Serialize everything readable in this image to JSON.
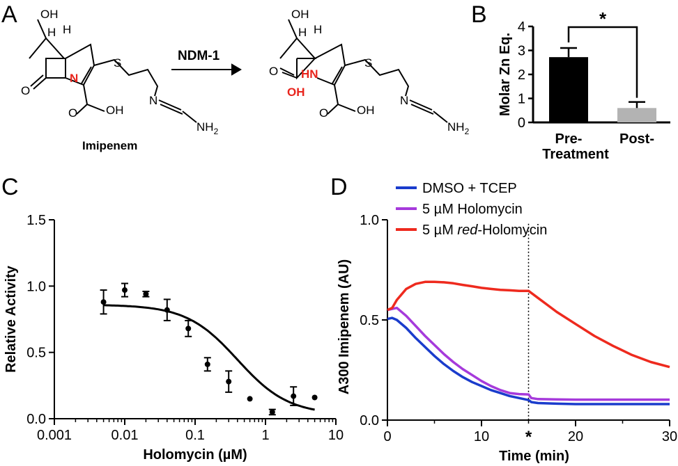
{
  "panels": {
    "A": {
      "label": "A",
      "reagent": "NDM-1",
      "substrate_name": "Imipenem",
      "atoms": {
        "oh": "OH",
        "h": "H",
        "n": "N",
        "o": "O",
        "s": "S",
        "cooh": "OH",
        "nh2_n": "NH",
        "nh2_sub": "2",
        "prod_hn": "HN",
        "prod_oh": "OH",
        "prod_o": "O"
      },
      "highlight_color": "#e8241c"
    },
    "B": {
      "label": "B"
    },
    "C": {
      "label": "C"
    },
    "D": {
      "label": "D"
    }
  },
  "chart_data": [
    {
      "panel": "B",
      "type": "bar",
      "categories": [
        "Pre-\nTreatment",
        "Post-"
      ],
      "category_lines": [
        [
          "Pre-",
          "Treatment"
        ],
        [
          "Post-"
        ]
      ],
      "values": [
        2.72,
        0.6
      ],
      "errors": [
        0.38,
        0.25
      ],
      "colors": [
        "#000000",
        "#b3b3b3"
      ],
      "ylabel": "Molar Zn Eq.",
      "ylim": [
        0,
        4
      ],
      "yticks": [
        0,
        1,
        2,
        3,
        4
      ],
      "annotation": "*"
    },
    {
      "panel": "C",
      "type": "scatter",
      "xscale": "log",
      "xlabel": "Holomycin (µM)",
      "ylabel": "Relative Activity",
      "xlim": [
        0.001,
        10
      ],
      "ylim": [
        0,
        1.5
      ],
      "xticks": [
        0.001,
        0.01,
        0.1,
        1,
        10
      ],
      "xticklabels": [
        "0.001",
        "0.01",
        "0.1",
        "1",
        "10"
      ],
      "yticks": [
        0,
        0.5,
        1.0,
        1.5
      ],
      "yticklabels": [
        "0.0",
        "0.5",
        "1.0",
        "1.5"
      ],
      "points": [
        {
          "x": 0.005,
          "y": 0.88,
          "err": 0.09
        },
        {
          "x": 0.01,
          "y": 0.97,
          "err": 0.05
        },
        {
          "x": 0.02,
          "y": 0.94,
          "err": 0.02
        },
        {
          "x": 0.04,
          "y": 0.82,
          "err": 0.08
        },
        {
          "x": 0.08,
          "y": 0.68,
          "err": 0.06
        },
        {
          "x": 0.15,
          "y": 0.41,
          "err": 0.05
        },
        {
          "x": 0.3,
          "y": 0.28,
          "err": 0.08
        },
        {
          "x": 0.6,
          "y": 0.15,
          "err": 0
        },
        {
          "x": 1.25,
          "y": 0.05,
          "err": 0.02
        },
        {
          "x": 2.5,
          "y": 0.17,
          "err": 0.07
        },
        {
          "x": 5,
          "y": 0.16,
          "err": 0
        }
      ],
      "fit": {
        "top": 0.86,
        "bottom": 0.03,
        "ic50": 0.4,
        "hill": 1.2,
        "xrange": [
          0.005,
          5
        ]
      }
    },
    {
      "panel": "D",
      "type": "line",
      "xlabel": "Time (min)",
      "ylabel": "A300 Imipenem (AU)",
      "xlim": [
        0,
        30
      ],
      "ylim": [
        0,
        1.0
      ],
      "xticks": [
        0,
        10,
        20,
        30
      ],
      "yticks": [
        0.0,
        0.5,
        1.0
      ],
      "yticklabels": [
        "0.0",
        "0.5",
        "1.0"
      ],
      "vline_x": 15,
      "vline_label": "*",
      "series": [
        {
          "name": "DMSO + TCEP",
          "color": "#1a3ccc",
          "x": [
            0,
            0.5,
            1,
            2,
            3,
            4,
            5,
            6,
            7,
            8,
            9,
            10,
            11,
            12,
            13,
            14,
            15,
            15.3,
            16,
            18,
            20,
            22,
            25,
            28,
            30
          ],
          "y": [
            0.505,
            0.51,
            0.5,
            0.46,
            0.41,
            0.365,
            0.32,
            0.28,
            0.245,
            0.215,
            0.19,
            0.17,
            0.15,
            0.135,
            0.12,
            0.11,
            0.1,
            0.09,
            0.085,
            0.082,
            0.08,
            0.08,
            0.08,
            0.08,
            0.08
          ]
        },
        {
          "name": "5 µM Holomycin",
          "color": "#a63adb",
          "x": [
            0,
            0.5,
            1,
            2,
            3,
            4,
            5,
            6,
            7,
            8,
            9,
            10,
            11,
            12,
            13,
            14,
            15,
            15.3,
            16,
            18,
            20,
            22,
            25,
            28,
            30
          ],
          "y": [
            0.55,
            0.555,
            0.56,
            0.52,
            0.47,
            0.42,
            0.375,
            0.33,
            0.29,
            0.255,
            0.225,
            0.195,
            0.17,
            0.15,
            0.135,
            0.13,
            0.128,
            0.11,
            0.105,
            0.103,
            0.102,
            0.102,
            0.102,
            0.102,
            0.102
          ]
        },
        {
          "name": "5 µM red-Holomycin",
          "color": "#ee2a1e",
          "x": [
            0,
            0.5,
            1,
            2,
            3,
            4,
            5,
            6,
            7,
            8,
            9,
            10,
            11,
            12,
            13,
            14,
            15,
            16,
            17,
            18,
            20,
            22,
            24,
            26,
            28,
            30
          ],
          "y": [
            0.55,
            0.56,
            0.6,
            0.655,
            0.68,
            0.69,
            0.69,
            0.688,
            0.683,
            0.675,
            0.668,
            0.66,
            0.655,
            0.65,
            0.648,
            0.645,
            0.645,
            0.61,
            0.575,
            0.54,
            0.48,
            0.42,
            0.37,
            0.325,
            0.29,
            0.265
          ]
        }
      ],
      "legend": [
        {
          "pre": "DMSO + TCEP",
          "it": "",
          "post": "",
          "color": "#1a3ccc"
        },
        {
          "pre": "5 µM Holomycin",
          "it": "",
          "post": "",
          "color": "#a63adb"
        },
        {
          "pre": "5 µM ",
          "it": "red",
          "post": "-Holomycin",
          "color": "#ee2a1e"
        }
      ]
    }
  ]
}
